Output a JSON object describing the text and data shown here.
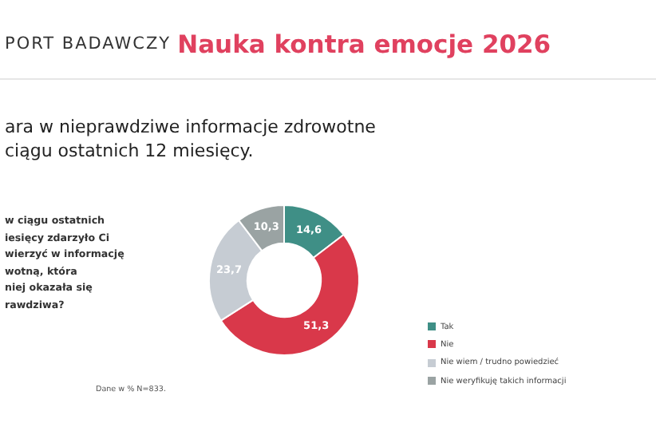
{
  "chart_data": {
    "type": "donut",
    "title": "Nauka kontra emocje 2026",
    "subtitle": "ara w nieprawdziwe informacje zdrowotne\nciągu ostatnich 12 miesięcy.",
    "annotations": [
      "PORT BADAWCZY",
      "w ciągu ostatnich\niesięcy zdarzyło Ci\nwierzyć w informację\nwotną, która\nniej okazała się\nrawdziwa?",
      "Dane w % N=833."
    ],
    "categories": [
      "Tak",
      "Nie",
      "Nie wiem / trudno powiedzieć",
      "Nie weryfikuję takich informacji"
    ],
    "values": [
      14.6,
      51.3,
      23.7,
      10.3
    ],
    "colors": [
      "#3f8f86",
      "#d9384a",
      "#c6ccd3",
      "#9aa3a3"
    ],
    "value_labels": [
      "14,6",
      "51,3",
      "23,7",
      "10,3"
    ],
    "legend": "right"
  }
}
